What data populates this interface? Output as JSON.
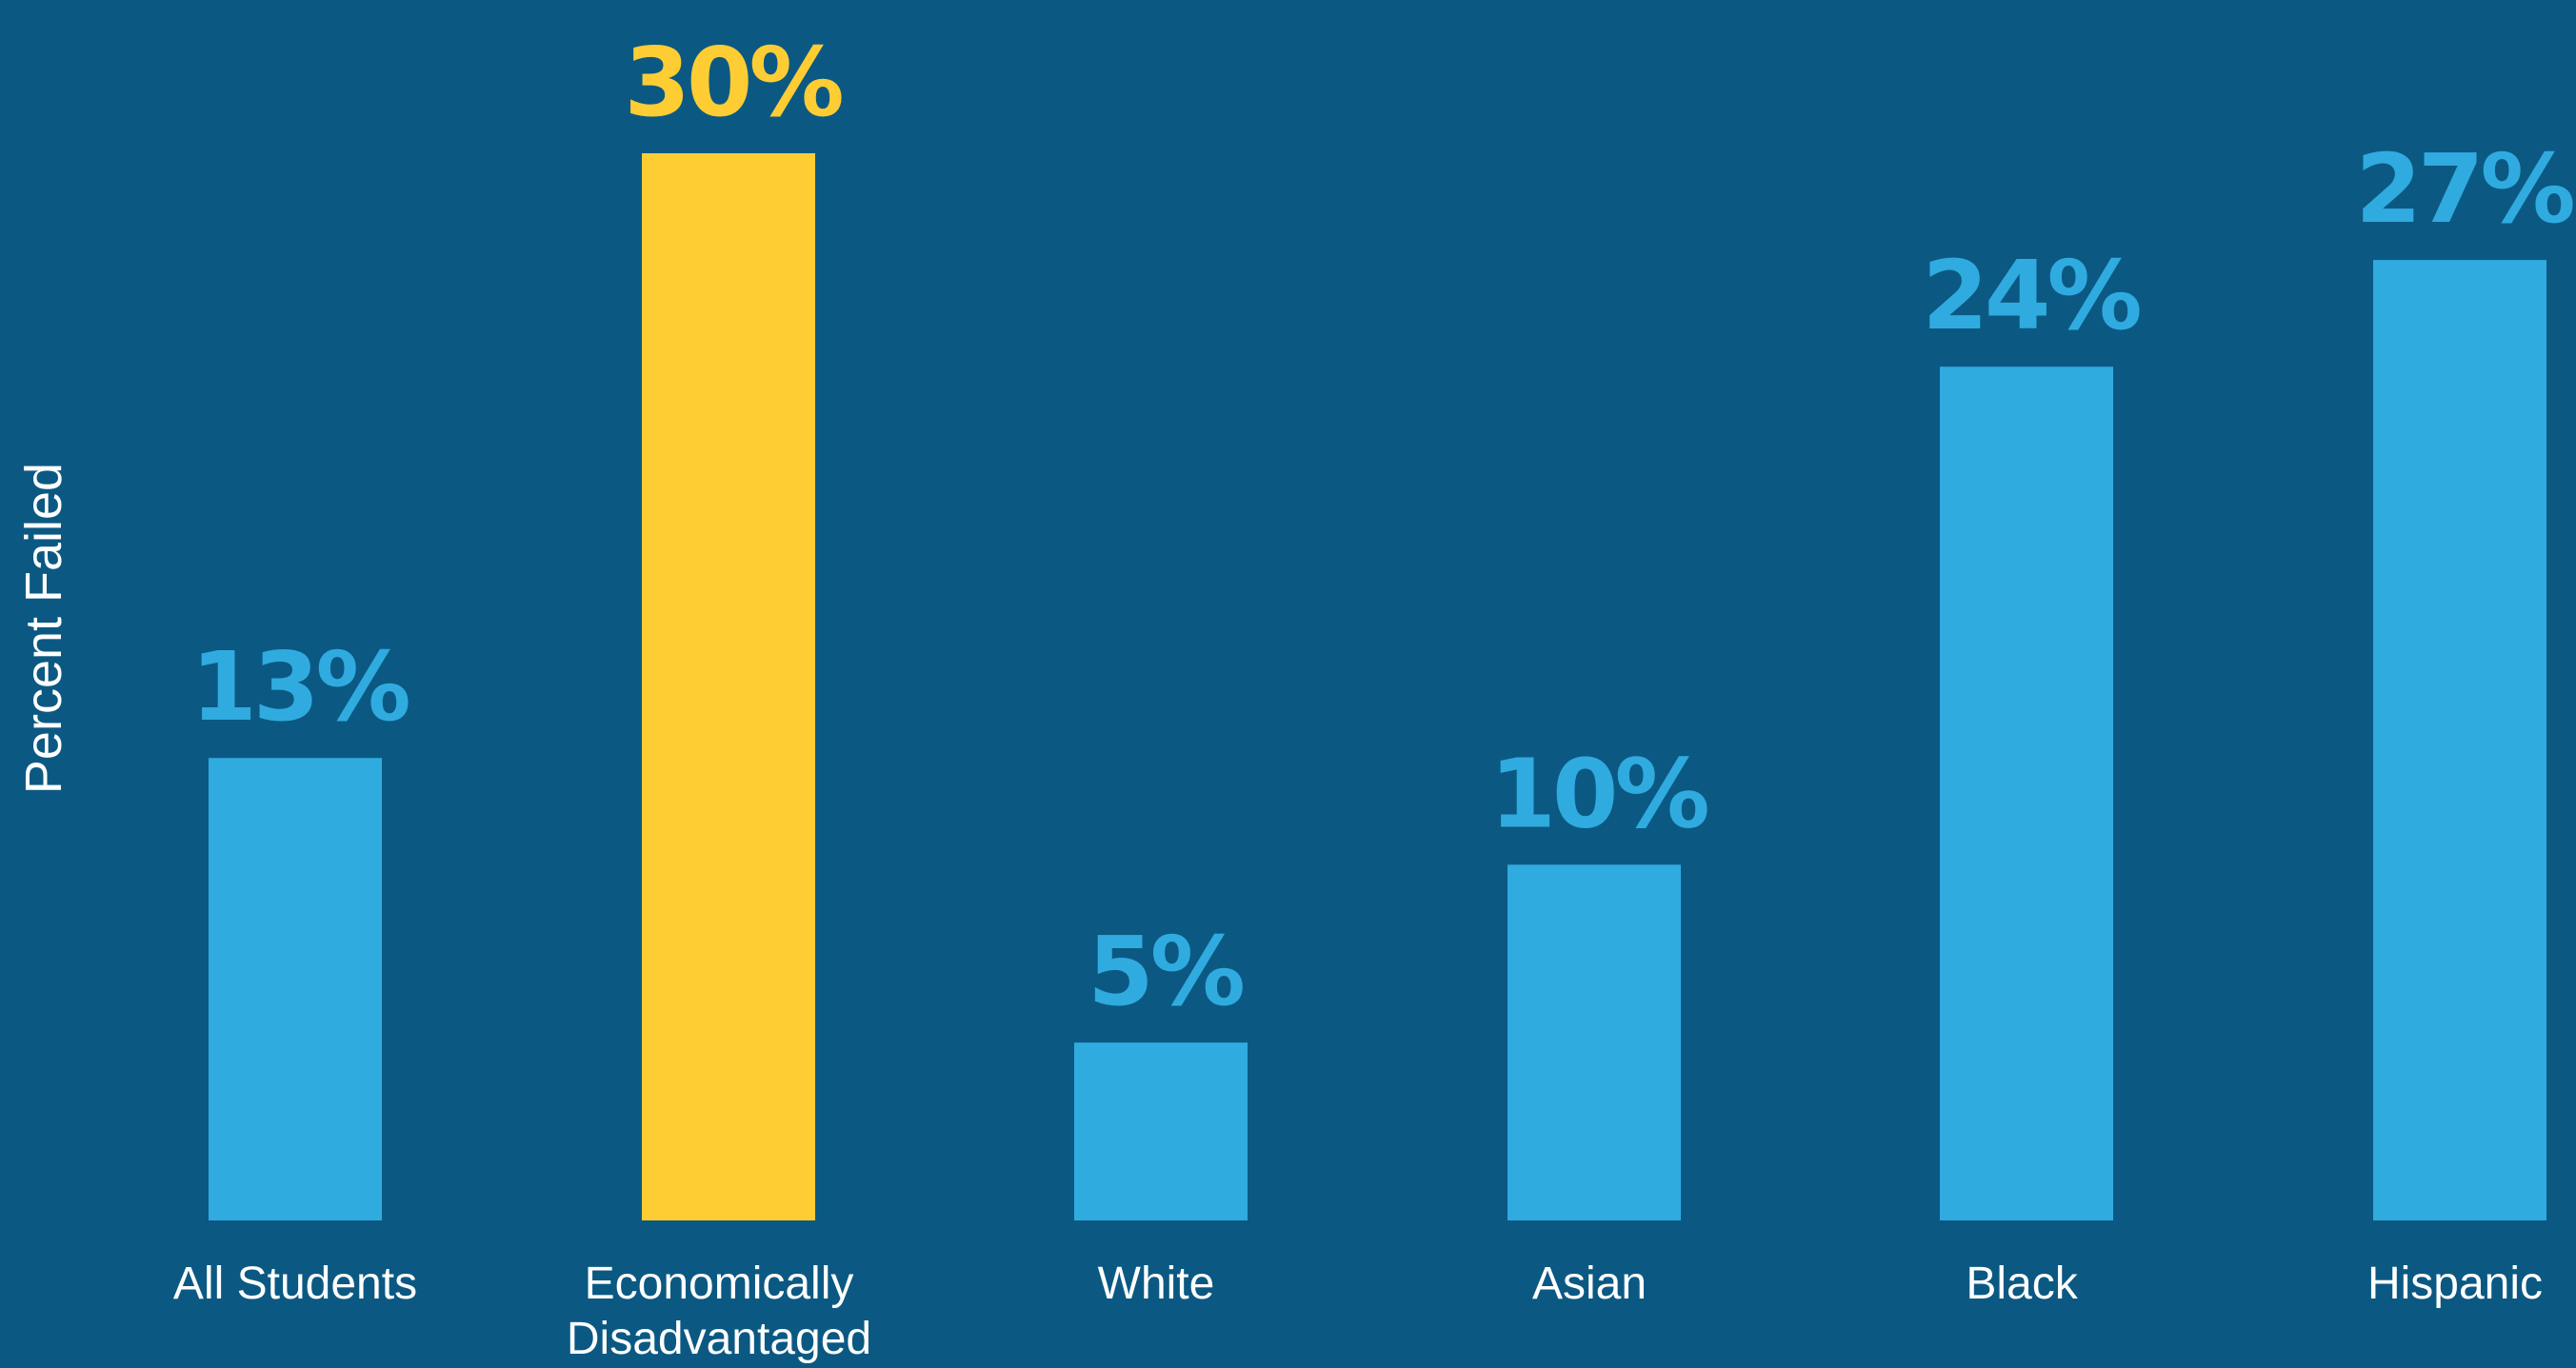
{
  "colors": {
    "background": "#0b5983",
    "bar_default": "#30abe0",
    "bar_highlight": "#fecd33"
  },
  "chart_data": {
    "type": "bar",
    "title": "",
    "xlabel": "",
    "ylabel": "Percent Failed",
    "ylim": [
      0,
      30
    ],
    "grid": false,
    "categories": [
      "All Students",
      [
        "Economically",
        "Disadvantaged"
      ],
      "White",
      "Asian",
      "Black",
      "Hispanic"
    ],
    "values": [
      13,
      30,
      5,
      10,
      24,
      27
    ],
    "value_labels": [
      "13%",
      "30%",
      "5%",
      "10%",
      "24%",
      "27%"
    ],
    "highlight_index": 1
  }
}
